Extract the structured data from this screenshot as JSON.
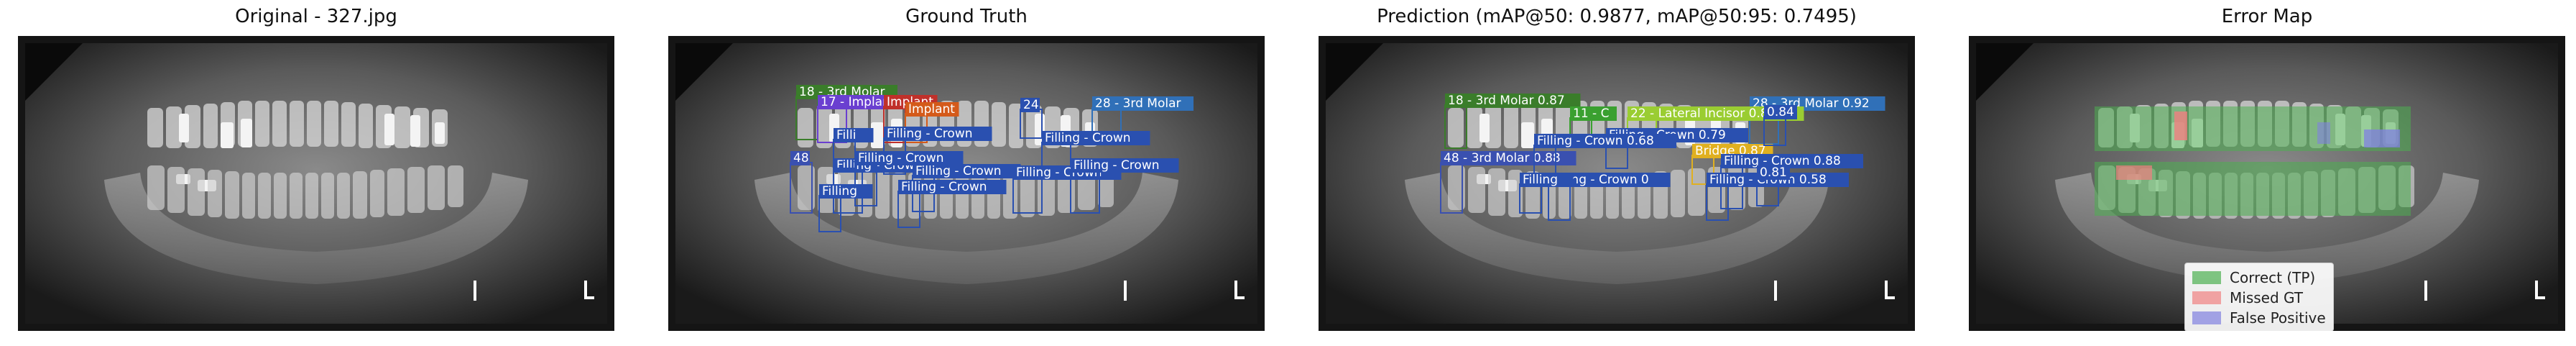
{
  "panels": [
    {
      "title": "Original - 327.jpg",
      "type": "original"
    },
    {
      "title": "Ground Truth",
      "type": "gt"
    },
    {
      "title": "Prediction (mAP@50: 0.9877, mAP@50:95: 0.7495)",
      "type": "pred"
    },
    {
      "title": "Error Map",
      "type": "error"
    }
  ],
  "xray_marker": "L",
  "gt_labels": [
    {
      "text": "18 - 3rd Molar",
      "color": "#3a7d2a"
    },
    {
      "text": "17 - Implant",
      "color": "#6a3fd0"
    },
    {
      "text": "Implant",
      "color": "#c0302a"
    },
    {
      "text": "Implant",
      "color": "#d45a1a"
    },
    {
      "text": "24",
      "color": "#2a50b0"
    },
    {
      "text": "28 - 3rd Molar",
      "color": "#3070b8"
    },
    {
      "text": "Filling - Crown",
      "color": "#2a50b0"
    },
    {
      "text": "Filling - Crown",
      "color": "#2a50b0"
    },
    {
      "text": "Filling - Crown",
      "color": "#2a50b0"
    },
    {
      "text": "Filling - Crown",
      "color": "#2a50b0"
    },
    {
      "text": "Filling - Crown",
      "color": "#2a50b0"
    },
    {
      "text": "Filling - Crown",
      "color": "#2a50b0"
    },
    {
      "text": "Filling - Crown",
      "color": "#2a50b0"
    },
    {
      "text": "48",
      "color": "#3a50b0"
    },
    {
      "text": "Filli",
      "color": "#2a50b0"
    },
    {
      "text": "Filling",
      "color": "#2a50b0"
    },
    {
      "text": "Filling - Crown",
      "color": "#2a50b0"
    }
  ],
  "pred_labels": [
    {
      "text": "18 - 3rd Molar 0.87",
      "color": "#3a7d2a"
    },
    {
      "text": "28 - 3rd Molar 0.92",
      "color": "#3070b8"
    },
    {
      "text": "11 - C",
      "color": "#3aa030"
    },
    {
      "text": "22 - Lateral Incisor 0.83",
      "color": "#9acd32"
    },
    {
      "text": "Filling - Crown 0.79",
      "color": "#2a50b0"
    },
    {
      "text": "Bridge 0.87",
      "color": "#e0b020"
    },
    {
      "text": "48 - 3rd Molar 0.88",
      "color": "#3a50b0"
    },
    {
      "text": "Filling - Crown 0.88",
      "color": "#2a50b0"
    },
    {
      "text": "Filling - Crown 0.68",
      "color": "#2a50b0"
    },
    {
      "text": "Filling - Crown 0",
      "color": "#2a50b0"
    },
    {
      "text": "Filling - Crown 0.58",
      "color": "#2a50b0"
    },
    {
      "text": "0.81",
      "color": "#2a50b0"
    },
    {
      "text": "0.84",
      "color": "#2a50b0"
    },
    {
      "text": "Filling",
      "color": "#2a50b0"
    }
  ],
  "legend": [
    {
      "label": "Correct (TP)",
      "color": "#4caf50"
    },
    {
      "label": "Missed GT",
      "color": "#f08080"
    },
    {
      "label": "False Positive",
      "color": "#8080e0"
    }
  ]
}
